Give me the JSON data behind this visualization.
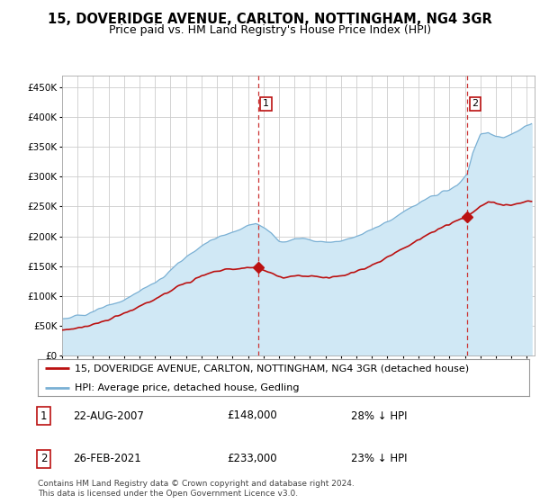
{
  "title": "15, DOVERIDGE AVENUE, CARLTON, NOTTINGHAM, NG4 3GR",
  "subtitle": "Price paid vs. HM Land Registry's House Price Index (HPI)",
  "legend_line1": "15, DOVERIDGE AVENUE, CARLTON, NOTTINGHAM, NG4 3GR (detached house)",
  "legend_line2": "HPI: Average price, detached house, Gedling",
  "footnote": "Contains HM Land Registry data © Crown copyright and database right 2024.\nThis data is licensed under the Open Government Licence v3.0.",
  "sale1_label": "1",
  "sale1_date": "22-AUG-2007",
  "sale1_price": "£148,000",
  "sale1_hpi": "28% ↓ HPI",
  "sale2_label": "2",
  "sale2_date": "26-FEB-2021",
  "sale2_price": "£233,000",
  "sale2_hpi": "23% ↓ HPI",
  "sale1_x": 2007.65,
  "sale1_y": 148000,
  "sale2_x": 2021.15,
  "sale2_y": 233000,
  "vline1_x": 2007.65,
  "vline2_x": 2021.15,
  "ylim": [
    0,
    470000
  ],
  "xlim": [
    1995,
    2025.5
  ],
  "yticks": [
    0,
    50000,
    100000,
    150000,
    200000,
    250000,
    300000,
    350000,
    400000,
    450000
  ],
  "xticks": [
    1995,
    1996,
    1997,
    1998,
    1999,
    2000,
    2001,
    2002,
    2003,
    2004,
    2005,
    2006,
    2007,
    2008,
    2009,
    2010,
    2011,
    2012,
    2013,
    2014,
    2015,
    2016,
    2017,
    2018,
    2019,
    2020,
    2021,
    2022,
    2023,
    2024,
    2025
  ],
  "hpi_color": "#7ab0d4",
  "hpi_fill_color": "#d0e8f5",
  "price_color": "#bb1111",
  "vline_color": "#cc3333",
  "grid_color": "#cccccc",
  "bg_color": "#ffffff",
  "title_fontsize": 10.5,
  "subtitle_fontsize": 9,
  "tick_fontsize": 7.5,
  "legend_fontsize": 8,
  "table_fontsize": 8.5,
  "footnote_fontsize": 6.5
}
